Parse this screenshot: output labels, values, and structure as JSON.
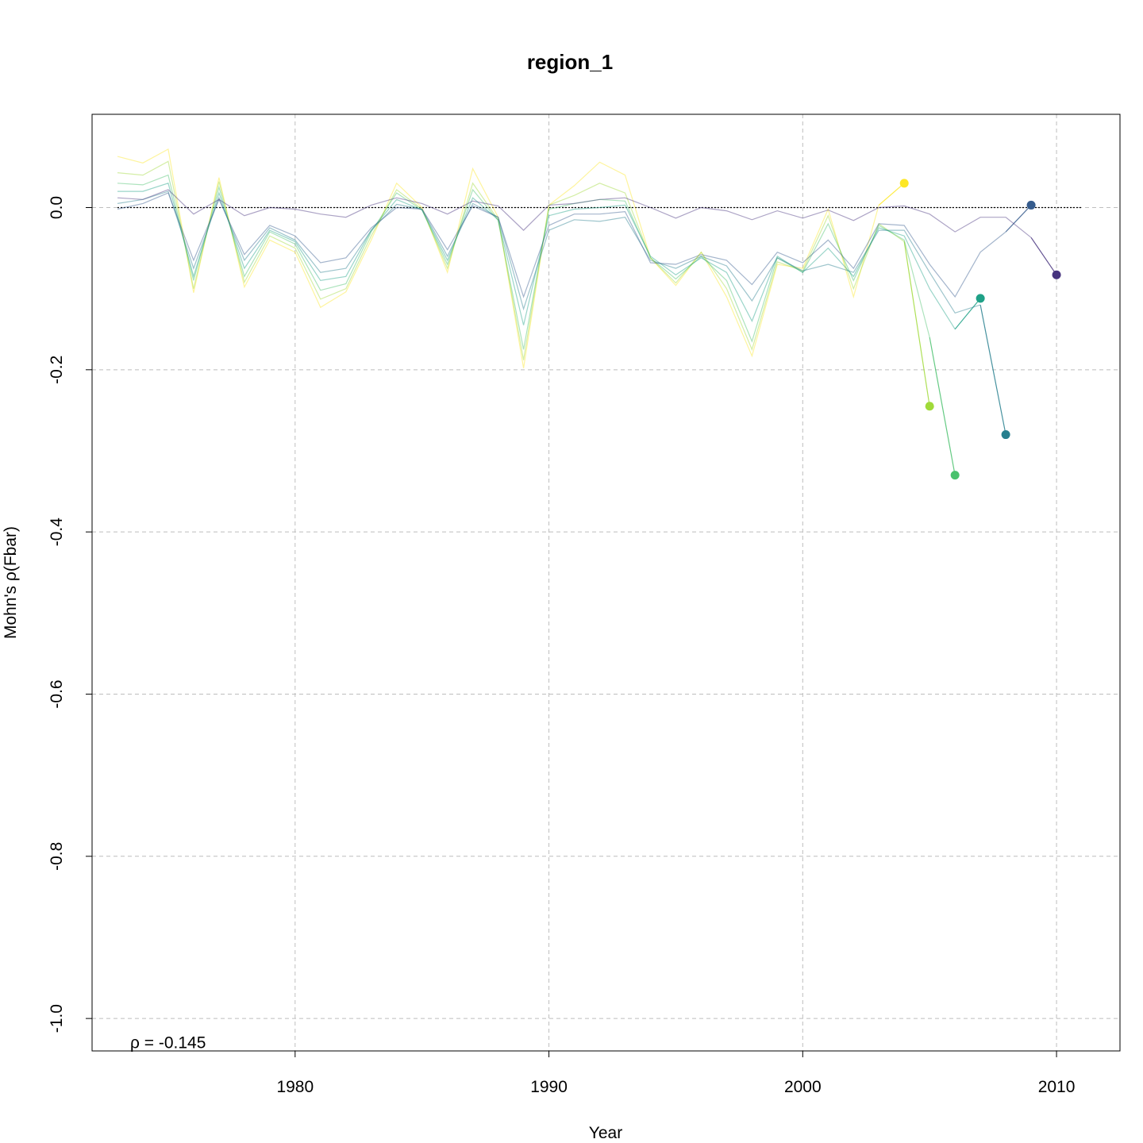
{
  "chart_data": {
    "type": "line",
    "title": "region_1",
    "xlabel": "Year",
    "ylabel": "Mohn's ρ(Fbar)",
    "xlim": [
      1972,
      2012.5
    ],
    "ylim": [
      -1.04,
      0.115
    ],
    "x_ticks": [
      1980,
      1990,
      2000,
      2010
    ],
    "x_tick_labels": [
      "1980",
      "1990",
      "2000",
      "2010"
    ],
    "y_ticks": [
      0.0,
      -0.2,
      -0.4,
      -0.6,
      -0.8,
      -1.0
    ],
    "y_tick_labels": [
      "0.0",
      "-0.2",
      "-0.4",
      "-0.6",
      "-0.8",
      "-1.0"
    ],
    "grid": true,
    "reference_line": {
      "y": 0.0,
      "x_range": [
        1973,
        2011
      ],
      "style": "dotted"
    },
    "annotation": {
      "text": "ρ = -0.145",
      "year": 1973.5,
      "value": -1.015
    },
    "series": [
      {
        "color": "#FDE725",
        "x": [
          1973,
          1974,
          1975,
          1976,
          1977,
          1978,
          1979,
          1980,
          1981,
          1982,
          1983,
          1984,
          1985,
          1986,
          1987,
          1988,
          1989,
          1990,
          1991,
          1992,
          1993,
          1994,
          1995,
          1996,
          1997,
          1998,
          1999,
          2000,
          2001,
          2002,
          2003,
          2004
        ],
        "y": [
          0.063,
          0.055,
          0.072,
          -0.105,
          0.037,
          -0.098,
          -0.04,
          -0.055,
          -0.123,
          -0.104,
          -0.04,
          0.03,
          0.0,
          -0.08,
          0.048,
          -0.012,
          -0.198,
          0.003,
          0.027,
          0.056,
          0.04,
          -0.062,
          -0.096,
          -0.055,
          -0.11,
          -0.183,
          -0.07,
          -0.075,
          -0.002,
          -0.11,
          0.003,
          0.03
        ],
        "endpoint": {
          "x": 2004,
          "y": 0.03
        }
      },
      {
        "color": "#A0DA39",
        "x": [
          1973,
          1974,
          1975,
          1976,
          1977,
          1978,
          1979,
          1980,
          1981,
          1982,
          1983,
          1984,
          1985,
          1986,
          1987,
          1988,
          1989,
          1990,
          1991,
          1992,
          1993,
          1994,
          1995,
          1996,
          1997,
          1998,
          1999,
          2000,
          2001,
          2002,
          2003,
          2004,
          2005
        ],
        "y": [
          0.043,
          0.04,
          0.057,
          -0.1,
          0.032,
          -0.092,
          -0.035,
          -0.05,
          -0.113,
          -0.1,
          -0.035,
          0.022,
          -0.002,
          -0.075,
          0.03,
          -0.015,
          -0.188,
          0.003,
          0.015,
          0.03,
          0.018,
          -0.062,
          -0.093,
          -0.055,
          -0.1,
          -0.175,
          -0.067,
          -0.078,
          -0.01,
          -0.1,
          -0.02,
          -0.042,
          -0.245
        ],
        "endpoint": {
          "x": 2005,
          "y": -0.245
        }
      },
      {
        "color": "#4AC16D",
        "x": [
          1973,
          1974,
          1975,
          1976,
          1977,
          1978,
          1979,
          1980,
          1981,
          1982,
          1983,
          1984,
          1985,
          1986,
          1987,
          1988,
          1989,
          1990,
          1991,
          1992,
          1993,
          1994,
          1995,
          1996,
          1997,
          1998,
          1999,
          2000,
          2001,
          2002,
          2003,
          2004,
          2005,
          2006
        ],
        "y": [
          0.03,
          0.028,
          0.04,
          -0.09,
          0.025,
          -0.085,
          -0.03,
          -0.045,
          -0.102,
          -0.094,
          -0.03,
          0.018,
          -0.003,
          -0.07,
          0.022,
          -0.016,
          -0.175,
          -0.002,
          0.005,
          0.01,
          0.008,
          -0.062,
          -0.088,
          -0.06,
          -0.09,
          -0.165,
          -0.062,
          -0.08,
          -0.02,
          -0.09,
          -0.022,
          -0.04,
          -0.16,
          -0.33
        ],
        "endpoint": {
          "x": 2006,
          "y": -0.33
        }
      },
      {
        "color": "#1FA187",
        "x": [
          1973,
          1974,
          1975,
          1976,
          1977,
          1978,
          1979,
          1980,
          1981,
          1982,
          1983,
          1984,
          1985,
          1986,
          1987,
          1988,
          1989,
          1990,
          1991,
          1992,
          1993,
          1994,
          1995,
          1996,
          1997,
          1998,
          1999,
          2000,
          2001,
          2002,
          2003,
          2004,
          2005,
          2006,
          2007
        ],
        "y": [
          0.02,
          0.02,
          0.03,
          -0.085,
          0.018,
          -0.075,
          -0.028,
          -0.042,
          -0.09,
          -0.085,
          -0.028,
          0.01,
          -0.003,
          -0.065,
          0.012,
          -0.015,
          -0.145,
          -0.01,
          -0.002,
          0.0,
          0.003,
          -0.06,
          -0.083,
          -0.062,
          -0.08,
          -0.14,
          -0.06,
          -0.08,
          -0.05,
          -0.085,
          -0.025,
          -0.035,
          -0.1,
          -0.15,
          -0.112
        ],
        "endpoint": {
          "x": 2007,
          "y": -0.112
        }
      },
      {
        "color": "#277F8E",
        "x": [
          1973,
          1974,
          1975,
          1976,
          1977,
          1978,
          1979,
          1980,
          1981,
          1982,
          1983,
          1984,
          1985,
          1986,
          1987,
          1988,
          1989,
          1990,
          1991,
          1992,
          1993,
          1994,
          1995,
          1996,
          1997,
          1998,
          1999,
          2000,
          2001,
          2002,
          2003,
          2004,
          2005,
          2006,
          2007,
          2008
        ],
        "y": [
          0.005,
          0.01,
          0.02,
          -0.075,
          0.012,
          -0.065,
          -0.025,
          -0.04,
          -0.08,
          -0.075,
          -0.028,
          0.004,
          -0.002,
          -0.06,
          0.005,
          -0.012,
          -0.125,
          -0.028,
          -0.015,
          -0.017,
          -0.012,
          -0.065,
          -0.075,
          -0.06,
          -0.072,
          -0.115,
          -0.062,
          -0.078,
          -0.07,
          -0.08,
          -0.028,
          -0.028,
          -0.08,
          -0.13,
          -0.12,
          -0.28
        ],
        "endpoint": {
          "x": 2008,
          "y": -0.28
        }
      },
      {
        "color": "#365C8D",
        "x": [
          1973,
          1974,
          1975,
          1976,
          1977,
          1978,
          1979,
          1980,
          1981,
          1982,
          1983,
          1984,
          1985,
          1986,
          1987,
          1988,
          1989,
          1990,
          1991,
          1992,
          1993,
          1994,
          1995,
          1996,
          1997,
          1998,
          1999,
          2000,
          2001,
          2002,
          2003,
          2004,
          2005,
          2006,
          2007,
          2008,
          2009
        ],
        "y": [
          -0.002,
          0.005,
          0.018,
          -0.065,
          0.01,
          -0.058,
          -0.022,
          -0.035,
          -0.068,
          -0.062,
          -0.025,
          0.0,
          -0.002,
          -0.052,
          0.002,
          -0.012,
          -0.11,
          -0.022,
          -0.008,
          -0.008,
          -0.005,
          -0.068,
          -0.07,
          -0.058,
          -0.065,
          -0.095,
          -0.055,
          -0.068,
          -0.04,
          -0.075,
          -0.02,
          -0.022,
          -0.07,
          -0.11,
          -0.055,
          -0.03,
          0.003
        ],
        "endpoint": {
          "x": 2009,
          "y": 0.003
        }
      },
      {
        "color": "#46337E",
        "x": [
          1973,
          1974,
          1975,
          1976,
          1977,
          1978,
          1979,
          1980,
          1981,
          1982,
          1983,
          1984,
          1985,
          1986,
          1987,
          1988,
          1989,
          1990,
          1991,
          1992,
          1993,
          1994,
          1995,
          1996,
          1997,
          1998,
          1999,
          2000,
          2001,
          2002,
          2003,
          2004,
          2005,
          2006,
          2007,
          2008,
          2009,
          2010
        ],
        "y": [
          0.012,
          0.01,
          0.022,
          -0.008,
          0.01,
          -0.01,
          0.0,
          -0.002,
          -0.008,
          -0.012,
          0.003,
          0.012,
          0.005,
          -0.008,
          0.008,
          0.002,
          -0.028,
          0.003,
          0.005,
          0.01,
          0.012,
          0.0,
          -0.013,
          0.0,
          -0.004,
          -0.015,
          -0.004,
          -0.013,
          -0.003,
          -0.016,
          0.0,
          0.002,
          -0.008,
          -0.03,
          -0.012,
          -0.012,
          -0.037,
          -0.083
        ],
        "endpoint": {
          "x": 2010,
          "y": -0.083
        }
      }
    ]
  }
}
